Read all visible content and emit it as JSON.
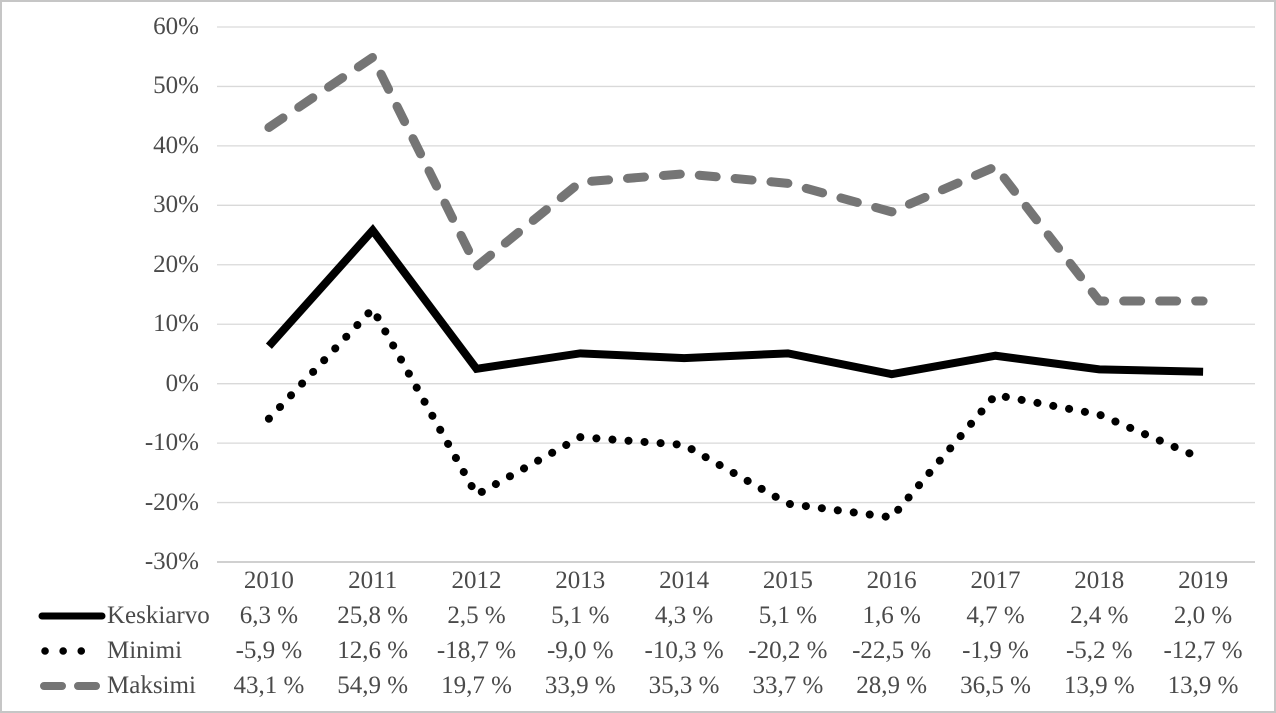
{
  "window": {
    "background": "#ffffff",
    "border_color": "#c6c6c6"
  },
  "colors": {
    "gridline": "#d9d9d9",
    "axis_line": "#c0c0c0",
    "text": "#4a4a4a",
    "series_black": "#000000",
    "series_gray": "#757575"
  },
  "chart_data": {
    "type": "line",
    "title": "",
    "xlabel": "",
    "ylabel": "",
    "grid": true,
    "legend_position": "left-of-data-table",
    "categories": [
      "2010",
      "2011",
      "2012",
      "2013",
      "2014",
      "2015",
      "2016",
      "2017",
      "2018",
      "2019"
    ],
    "series": [
      {
        "name": "Keskiarvo",
        "line_style": "solid",
        "color": "#000000",
        "values": [
          6.3,
          25.8,
          2.5,
          5.1,
          4.3,
          5.1,
          1.6,
          4.7,
          2.4,
          2.0
        ],
        "labels": [
          "6,3 %",
          "25,8 %",
          "2,5 %",
          "5,1 %",
          "4,3 %",
          "5,1 %",
          "1,6 %",
          "4,7 %",
          "2,4 %",
          "2,0 %"
        ]
      },
      {
        "name": "Minimi",
        "line_style": "dotted",
        "color": "#000000",
        "values": [
          -5.9,
          12.6,
          -18.7,
          -9.0,
          -10.3,
          -20.2,
          -22.5,
          -1.9,
          -5.2,
          -12.7
        ],
        "labels": [
          "-5,9 %",
          "12,6 %",
          "-18,7 %",
          "-9,0 %",
          "-10,3 %",
          "-20,2 %",
          "-22,5 %",
          "-1,9 %",
          "-5,2 %",
          "-12,7 %"
        ]
      },
      {
        "name": "Maksimi",
        "line_style": "dashed",
        "color": "#757575",
        "values": [
          43.1,
          54.9,
          19.7,
          33.9,
          35.3,
          33.7,
          28.9,
          36.5,
          13.9,
          13.9
        ],
        "labels": [
          "43,1 %",
          "54,9 %",
          "19,7 %",
          "33,9 %",
          "35,3 %",
          "33,7 %",
          "28,9 %",
          "36,5 %",
          "13,9 %",
          "13,9 %"
        ]
      }
    ],
    "y_axis": {
      "tick_labels": [
        "60%",
        "50%",
        "40%",
        "30%",
        "20%",
        "10%",
        "0%",
        "-10%",
        "-20%",
        "-30%"
      ],
      "tick_values": [
        60,
        50,
        40,
        30,
        20,
        10,
        0,
        -10,
        -20,
        -30
      ],
      "ylim": [
        -30,
        60
      ]
    }
  }
}
